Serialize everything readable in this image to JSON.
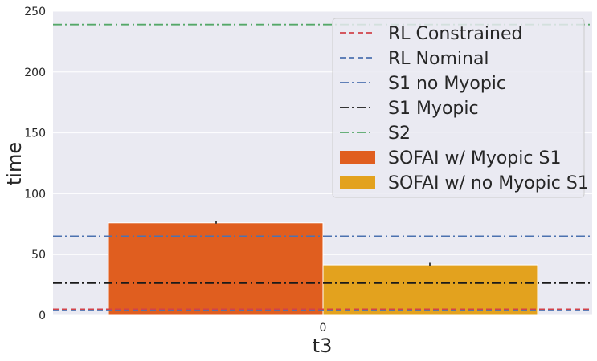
{
  "chart_data": {
    "type": "bar",
    "categories": [
      "0"
    ],
    "xlabel": "t3",
    "ylabel": "time",
    "ylim": [
      0,
      250
    ],
    "yticks": [
      0,
      50,
      100,
      150,
      200,
      250
    ],
    "grid": true,
    "legend_position": "top-right",
    "bars": [
      {
        "name": "SOFAI w/ Myopic S1",
        "value": 76,
        "err_low": 75.3,
        "err_high": 77.6,
        "color": "#E05E1F"
      },
      {
        "name": "SOFAI w/ no Myopic S1",
        "value": 41.5,
        "err_low": 40.8,
        "err_high": 43.2,
        "color": "#E3A21E"
      }
    ],
    "reference_lines": [
      {
        "name": "RL Constrained",
        "value": 5,
        "color": "#D1434B",
        "style": "dashed"
      },
      {
        "name": "RL Nominal",
        "value": 4,
        "color": "#4C72B0",
        "style": "dashed"
      },
      {
        "name": "S1 no Myopic",
        "value": 65,
        "color": "#4C72B0",
        "style": "dashdot"
      },
      {
        "name": "S1 Myopic",
        "value": 26.5,
        "color": "#1A1A1A",
        "style": "dashdot"
      },
      {
        "name": "S2",
        "value": 239,
        "color": "#55A868",
        "style": "dashdot"
      }
    ]
  }
}
